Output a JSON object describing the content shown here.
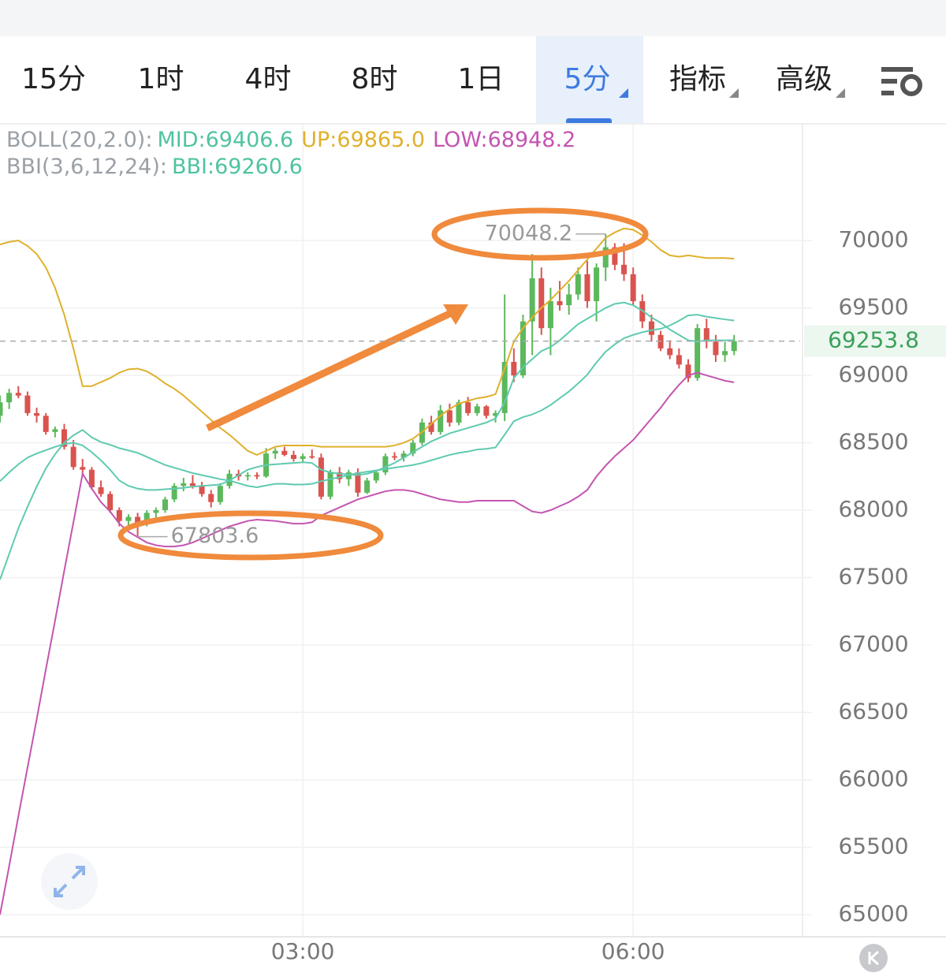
{
  "tabs": {
    "items": [
      "15分",
      "1时",
      "4时",
      "8时",
      "1日",
      "5分",
      "指标",
      "高级"
    ],
    "active": 5
  },
  "chart_data": {
    "type": "candlestick",
    "indicators": [
      {
        "label": "BOLL(20,2.0):",
        "items": [
          "MID:69406.6",
          "UP:69865.0",
          "LOW:68948.2"
        ],
        "colors": [
          "#4fc3a1",
          "#e0b02c",
          "#c455b0"
        ]
      },
      {
        "label": "BBI(3,6,12,24):",
        "items": [
          "BBI:69260.6"
        ],
        "colors": [
          "#4fc3a1"
        ]
      }
    ],
    "categories": [
      null,
      null,
      null,
      null,
      null,
      null,
      null,
      null,
      null,
      null,
      null,
      null,
      null,
      null,
      null,
      null,
      null,
      null,
      null,
      null,
      null,
      null,
      null,
      null,
      null,
      null,
      null,
      null,
      null,
      null,
      null,
      null,
      null,
      "03:00",
      null,
      null,
      null,
      null,
      null,
      null,
      null,
      null,
      null,
      null,
      null,
      null,
      null,
      null,
      null,
      null,
      null,
      null,
      null,
      null,
      null,
      null,
      null,
      null,
      null,
      null,
      null,
      null,
      null,
      null,
      null,
      null,
      null,
      null,
      null,
      "06:00",
      null,
      null,
      null,
      null,
      null,
      null,
      null,
      null,
      null,
      null,
      null
    ],
    "open": [
      68700,
      68800,
      68870,
      68850,
      68720,
      68700,
      68580,
      68600,
      68470,
      68320,
      68300,
      68170,
      68120,
      68000,
      67920,
      67950,
      67900,
      67980,
      68000,
      68080,
      68180,
      68200,
      68180,
      68120,
      68060,
      68180,
      68270,
      68250,
      68260,
      68250,
      68420,
      68440,
      68410,
      68380,
      68400,
      68390,
      68100,
      68280,
      68230,
      68280,
      68130,
      68220,
      68280,
      68400,
      68390,
      68420,
      68500,
      68650,
      68580,
      68740,
      68650,
      68800,
      68720,
      68770,
      68700,
      68720,
      69100,
      69000,
      69400,
      69720,
      69350,
      69550,
      69520,
      69600,
      69750,
      69550,
      69800,
      69950,
      69820,
      69750,
      69550,
      69400,
      69300,
      69200,
      69150,
      69080,
      68980,
      69350,
      69250,
      69150,
      69180
    ],
    "high": [
      68850,
      68900,
      68920,
      68880,
      68760,
      68720,
      68620,
      68640,
      68520,
      68380,
      68320,
      68220,
      68140,
      68020,
      67970,
      67980,
      68000,
      68020,
      68100,
      68200,
      68240,
      68260,
      68210,
      68150,
      68200,
      68300,
      68300,
      68280,
      68280,
      68460,
      68460,
      68470,
      68440,
      68420,
      68450,
      68420,
      68300,
      68320,
      68300,
      68310,
      68240,
      68300,
      68420,
      68430,
      68440,
      68520,
      68680,
      68700,
      68780,
      68790,
      68820,
      68840,
      68790,
      68780,
      68740,
      69600,
      69200,
      69450,
      69900,
      69800,
      69650,
      69700,
      69680,
      69800,
      69850,
      69830,
      70048.2,
      69980,
      69980,
      69800,
      69600,
      69450,
      69330,
      69260,
      69200,
      69120,
      69380,
      69420,
      69300,
      69250,
      69300
    ],
    "low": [
      68650,
      68750,
      68830,
      68700,
      68650,
      68560,
      68540,
      68450,
      68300,
      68250,
      68150,
      68100,
      67980,
      67880,
      67850,
      67803.6,
      67880,
      67940,
      67980,
      68060,
      68140,
      68160,
      68100,
      68020,
      68040,
      68160,
      68220,
      68220,
      68230,
      68240,
      68380,
      68400,
      68360,
      68350,
      68380,
      68080,
      68080,
      68200,
      68180,
      68100,
      68120,
      68200,
      68260,
      68370,
      68360,
      68400,
      68480,
      68560,
      68560,
      68620,
      68630,
      68700,
      68700,
      68680,
      68650,
      68660,
      68950,
      68980,
      69150,
      69300,
      69150,
      69480,
      69450,
      69560,
      69500,
      69400,
      69700,
      69780,
      69700,
      69520,
      69350,
      69250,
      69180,
      69120,
      69050,
      68950,
      68960,
      69200,
      69100,
      69100,
      69150
    ],
    "close": [
      68800,
      68870,
      68850,
      68720,
      68700,
      68580,
      68600,
      68470,
      68320,
      68300,
      68170,
      68120,
      68000,
      67920,
      67950,
      67900,
      67980,
      68000,
      68080,
      68180,
      68200,
      68180,
      68120,
      68060,
      68180,
      68270,
      68250,
      68260,
      68250,
      68420,
      68440,
      68410,
      68380,
      68400,
      68390,
      68100,
      68280,
      68230,
      68280,
      68130,
      68220,
      68280,
      68400,
      68390,
      68420,
      68500,
      68650,
      68580,
      68740,
      68650,
      68800,
      68720,
      68770,
      68700,
      68720,
      69100,
      69000,
      69400,
      69720,
      69350,
      69550,
      69520,
      69600,
      69750,
      69550,
      69800,
      69950,
      69820,
      69750,
      69550,
      69400,
      69300,
      69200,
      69150,
      69080,
      68980,
      69350,
      69250,
      69150,
      69180,
      69253.8
    ],
    "up_color": "#5cb85c",
    "down_color": "#d9534f",
    "overlays": [
      {
        "color": "#e0b02c",
        "values": [
          69970,
          69990,
          70000,
          69960,
          69900,
          69800,
          69650,
          69450,
          69200,
          68920,
          68920,
          68950,
          68980,
          69020,
          69045,
          69050,
          69030,
          68990,
          68940,
          68900,
          68850,
          68790,
          68730,
          68670,
          68610,
          68560,
          68500,
          68440,
          68410,
          68440,
          68470,
          68480,
          68480,
          68480,
          68480,
          68470,
          68470,
          68470,
          68470,
          68470,
          68470,
          68470,
          68470,
          68480,
          68500,
          68530,
          68580,
          68640,
          68700,
          68750,
          68790,
          68810,
          68830,
          68840,
          68860,
          69050,
          69250,
          69350,
          69430,
          69500,
          69560,
          69630,
          69700,
          69780,
          69860,
          69940,
          70020,
          70060,
          70090,
          70080,
          70040,
          69990,
          69930,
          69890,
          69880,
          69890,
          69880,
          69870,
          69870,
          69870,
          69865.0
        ]
      },
      {
        "color": "#c455b0",
        "values": [
          65000,
          65360,
          65730,
          66090,
          66450,
          66820,
          67180,
          67550,
          67910,
          68270,
          68160,
          68060,
          67990,
          67900,
          67840,
          67800,
          67760,
          67740,
          67730,
          67730,
          67740,
          67760,
          67790,
          67820,
          67850,
          67880,
          67900,
          67920,
          67930,
          67925,
          67920,
          67910,
          67900,
          67900,
          67910,
          67960,
          67990,
          68020,
          68050,
          68080,
          68100,
          68120,
          68140,
          68150,
          68150,
          68140,
          68120,
          68100,
          68080,
          68070,
          68060,
          68060,
          68070,
          68070,
          68070,
          68070,
          68070,
          68030,
          67990,
          67980,
          68000,
          68030,
          68060,
          68100,
          68150,
          68250,
          68330,
          68400,
          68460,
          68520,
          68600,
          68680,
          68760,
          68850,
          68930,
          69000,
          69020,
          69000,
          68980,
          68960,
          68948.2
        ]
      },
      {
        "color": "#5fcab0",
        "values": [
          67485,
          67675,
          67865,
          68025,
          68175,
          68310,
          68415,
          68500,
          68555,
          68595,
          68540,
          68505,
          68485,
          68460,
          68443,
          68425,
          68395,
          68365,
          68335,
          68315,
          68295,
          68275,
          68260,
          68245,
          68230,
          68220,
          68200,
          68180,
          68170,
          68183,
          68195,
          68195,
          68190,
          68190,
          68195,
          68215,
          68230,
          68245,
          68260,
          68275,
          68285,
          68295,
          68305,
          68315,
          68325,
          68335,
          68350,
          68370,
          68390,
          68410,
          68425,
          68435,
          68450,
          68455,
          68465,
          68560,
          68660,
          68690,
          68710,
          68740,
          68780,
          68830,
          68880,
          68940,
          69005,
          69095,
          69175,
          69230,
          69275,
          69300,
          69320,
          69335,
          69345,
          69370,
          69405,
          69445,
          69450,
          69435,
          69425,
          69415,
          69406.6
        ]
      },
      {
        "color": "#5fcab0",
        "values": [
          68215,
          68280,
          68340,
          68390,
          68420,
          68445,
          68470,
          68490,
          68500,
          68480,
          68430,
          68370,
          68300,
          68220,
          68180,
          68160,
          68150,
          68150,
          68155,
          68160,
          68165,
          68175,
          68180,
          68185,
          68190,
          68220,
          68260,
          68300,
          68320,
          68335,
          68340,
          68345,
          68350,
          68355,
          68350,
          68300,
          68280,
          68270,
          68265,
          68260,
          68270,
          68290,
          68320,
          68350,
          68390,
          68430,
          68470,
          68510,
          68540,
          68570,
          68590,
          68610,
          68630,
          68650,
          68680,
          68800,
          68980,
          69060,
          69120,
          69180,
          69210,
          69260,
          69320,
          69380,
          69420,
          69460,
          69500,
          69530,
          69540,
          69520,
          69480,
          69430,
          69390,
          69340,
          69300,
          69260,
          69250,
          69260,
          69260,
          69260,
          69260.6
        ]
      }
    ],
    "high_marker": 70048.2,
    "low_marker": 67803.6,
    "last_price": 69253.8,
    "ylim": [
      64836,
      70860
    ],
    "yticks": [
      65000,
      65500,
      66000,
      66500,
      67000,
      67500,
      68000,
      68500,
      69000,
      69500,
      70000
    ],
    "grid": true
  }
}
